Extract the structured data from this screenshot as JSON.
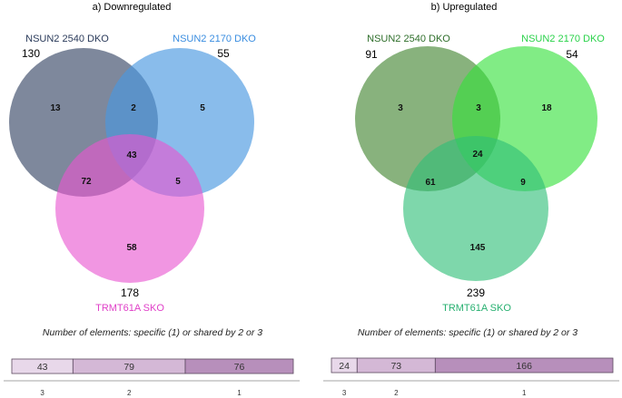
{
  "panels": [
    {
      "title": "a) Downregulated",
      "sets": [
        {
          "label": "NSUN2 2540 DKO",
          "total": "130",
          "color": "#5a6680",
          "label_color": "#2a3a5a"
        },
        {
          "label": "NSUN2 2170 DKO",
          "total": "55",
          "color": "#4a98e0",
          "label_color": "#3a8de0"
        },
        {
          "label": "TRMT61A SKO",
          "total": "178",
          "color": "#e855d0",
          "label_color": "#e040c8"
        }
      ],
      "regions": {
        "a_only": "13",
        "ab": "2",
        "b_only": "5",
        "abc": "43",
        "ac": "72",
        "bc": "5",
        "c_only": "58"
      },
      "caption": "Number of elements: specific (1) or shared by 2 or 3",
      "bar": [
        {
          "value": "43",
          "share": 43,
          "color": "#e8d8ea"
        },
        {
          "value": "79",
          "share": 79,
          "color": "#d4b8d6"
        },
        {
          "value": "76",
          "share": 76,
          "color": "#b78fbb"
        }
      ],
      "ticks": [
        "3",
        "2",
        "1"
      ]
    },
    {
      "title": "b) Upregulated",
      "sets": [
        {
          "label": "NSUN2 2540 DKO",
          "total": "91",
          "color": "#4a8a3a",
          "label_color": "#2e6e2a"
        },
        {
          "label": "NSUN2 2170 DKO",
          "total": "54",
          "color": "#34e03a",
          "label_color": "#2ad24a"
        },
        {
          "label": "TRMT61A SKO",
          "total": "239",
          "color": "#2ebf78",
          "label_color": "#27b070"
        }
      ],
      "regions": {
        "a_only": "3",
        "ab": "3",
        "b_only": "18",
        "abc": "24",
        "ac": "61",
        "bc": "9",
        "c_only": "145"
      },
      "caption": "Number of elements: specific (1) or shared by 2 or 3",
      "bar": [
        {
          "value": "24",
          "share": 24,
          "color": "#e8d8ea"
        },
        {
          "value": "73",
          "share": 73,
          "color": "#d4b8d6"
        },
        {
          "value": "166",
          "share": 166,
          "color": "#b78fbb"
        }
      ],
      "ticks": [
        "3",
        "2",
        "1"
      ]
    }
  ]
}
